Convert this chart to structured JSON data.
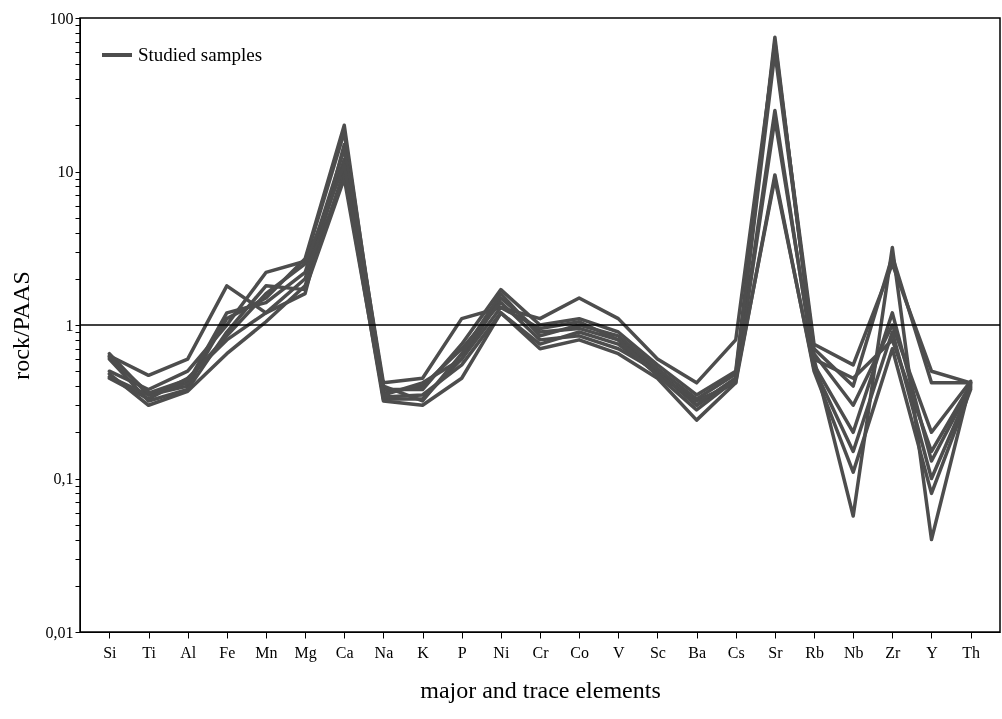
{
  "chart_data": {
    "type": "line",
    "xlabel": "major and trace elements",
    "ylabel": "rock/PAAS",
    "categories": [
      "Si",
      "Ti",
      "Al",
      "Fe",
      "Mn",
      "Mg",
      "Ca",
      "Na",
      "K",
      "P",
      "Ni",
      "Cr",
      "Co",
      "V",
      "Sc",
      "Ba",
      "Cs",
      "Sr",
      "Rb",
      "Nb",
      "Zr",
      "Y",
      "Th"
    ],
    "series": [
      {
        "name": "Studied samples",
        "color": "#4d4d4d",
        "values": [
          0.65,
          0.35,
          0.4,
          1.1,
          1.5,
          2.7,
          20,
          0.33,
          0.33,
          0.6,
          1.5,
          0.9,
          0.95,
          0.8,
          0.5,
          0.3,
          0.45,
          75,
          0.6,
          0.057,
          3.2,
          0.04,
          0.42
        ]
      },
      {
        "color": "#4d4d4d",
        "values": [
          0.63,
          0.47,
          0.6,
          1.8,
          1.2,
          1.6,
          15,
          0.42,
          0.45,
          1.1,
          1.3,
          1.1,
          1.5,
          1.1,
          0.6,
          0.42,
          0.8,
          65,
          0.75,
          0.55,
          2.5,
          0.5,
          0.42
        ]
      },
      {
        "color": "#4d4d4d",
        "values": [
          0.48,
          0.3,
          0.37,
          0.65,
          1.05,
          1.8,
          10,
          0.32,
          0.3,
          0.45,
          1.2,
          0.7,
          0.8,
          0.65,
          0.45,
          0.24,
          0.42,
          9.5,
          0.5,
          0.11,
          0.7,
          0.08,
          0.38
        ]
      },
      {
        "color": "#4d4d4d",
        "values": [
          0.45,
          0.33,
          0.45,
          0.8,
          1.2,
          2.0,
          12,
          0.36,
          0.4,
          0.7,
          1.4,
          0.8,
          0.85,
          0.7,
          0.5,
          0.3,
          0.45,
          25,
          0.55,
          0.2,
          1.2,
          0.13,
          0.4
        ]
      },
      {
        "color": "#4d4d4d",
        "values": [
          0.5,
          0.38,
          0.5,
          1.0,
          2.2,
          2.6,
          18,
          0.38,
          0.38,
          0.75,
          1.7,
          1.0,
          1.1,
          0.9,
          0.55,
          0.35,
          0.5,
          70,
          0.65,
          0.3,
          1.0,
          0.2,
          0.43
        ]
      },
      {
        "color": "#4d4d4d",
        "values": [
          0.6,
          0.32,
          0.38,
          0.9,
          1.8,
          1.7,
          9,
          0.34,
          0.35,
          0.55,
          1.2,
          0.75,
          0.9,
          0.75,
          0.48,
          0.32,
          0.42,
          22,
          0.6,
          0.45,
          0.8,
          0.15,
          0.41
        ]
      },
      {
        "color": "#4d4d4d",
        "values": [
          0.46,
          0.35,
          0.42,
          1.2,
          1.4,
          2.2,
          14,
          0.4,
          0.32,
          0.65,
          1.6,
          0.85,
          1.0,
          0.85,
          0.52,
          0.33,
          0.48,
          60,
          0.7,
          0.4,
          2.8,
          0.42,
          0.42
        ]
      },
      {
        "color": "#4d4d4d",
        "values": [
          0.62,
          0.36,
          0.44,
          0.85,
          1.6,
          2.5,
          11,
          0.35,
          0.42,
          0.6,
          1.3,
          0.95,
          1.05,
          0.8,
          0.47,
          0.28,
          0.44,
          9,
          0.52,
          0.15,
          0.9,
          0.1,
          0.39
        ]
      }
    ],
    "log": true,
    "ylim": [
      0.01,
      100
    ],
    "yticks": [
      {
        "value": 0.01,
        "label": "0,01"
      },
      {
        "value": 0.02,
        "label": null
      },
      {
        "value": 0.03,
        "label": null
      },
      {
        "value": 0.04,
        "label": null
      },
      {
        "value": 0.05,
        "label": null
      },
      {
        "value": 0.06,
        "label": null
      },
      {
        "value": 0.07,
        "label": null
      },
      {
        "value": 0.08,
        "label": null
      },
      {
        "value": 0.09,
        "label": null
      },
      {
        "value": 0.1,
        "label": "0,1"
      },
      {
        "value": 0.2,
        "label": null
      },
      {
        "value": 0.3,
        "label": null
      },
      {
        "value": 0.4,
        "label": null
      },
      {
        "value": 0.5,
        "label": null
      },
      {
        "value": 0.6,
        "label": null
      },
      {
        "value": 0.7,
        "label": null
      },
      {
        "value": 0.8,
        "label": null
      },
      {
        "value": 0.9,
        "label": null
      },
      1,
      {
        "value": 2,
        "label": null
      },
      {
        "value": 3,
        "label": null
      },
      {
        "value": 4,
        "label": null
      },
      {
        "value": 5,
        "label": null
      },
      {
        "value": 6,
        "label": null
      },
      {
        "value": 7,
        "label": null
      },
      {
        "value": 8,
        "label": null
      },
      {
        "value": 9,
        "label": null
      },
      10,
      {
        "value": 20,
        "label": null
      },
      {
        "value": 30,
        "label": null
      },
      {
        "value": 40,
        "label": null
      },
      {
        "value": 50,
        "label": null
      },
      {
        "value": 60,
        "label": null
      },
      {
        "value": 70,
        "label": null
      },
      {
        "value": 80,
        "label": null
      },
      {
        "value": 90,
        "label": null
      },
      100
    ],
    "ref_lines": [
      {
        "axis": "y",
        "value": 1,
        "color": "#000000"
      }
    ],
    "grid": false,
    "legend": "top left",
    "marker": "none",
    "line_style": "solid"
  }
}
